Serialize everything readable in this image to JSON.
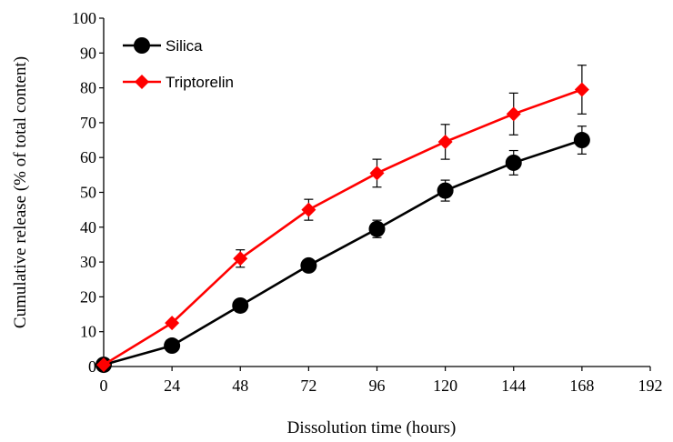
{
  "chart_data": {
    "type": "line",
    "title": "",
    "xlabel": "Dissolution time (hours)",
    "ylabel": "Cumulative release (% of total content)",
    "xlim": [
      0,
      192
    ],
    "ylim": [
      0,
      100
    ],
    "xticks": [
      "0",
      "24",
      "48",
      "72",
      "96",
      "120",
      "144",
      "168",
      "192"
    ],
    "yticks": [
      "0",
      "10",
      "20",
      "30",
      "40",
      "50",
      "60",
      "70",
      "80",
      "90",
      "100"
    ],
    "grid": false,
    "legend_position": "top-left",
    "x": [
      0,
      24,
      48,
      72,
      96,
      120,
      144,
      168
    ],
    "series": [
      {
        "name": "Silica",
        "color": "#000000",
        "marker": "circle",
        "values": [
          0.5,
          6,
          17.5,
          29,
          39.5,
          50.5,
          58.5,
          65
        ],
        "errors": [
          0,
          0,
          0,
          0,
          2.5,
          3,
          3.5,
          4
        ]
      },
      {
        "name": "Triptorelin",
        "color": "#ff0000",
        "marker": "diamond",
        "values": [
          0.5,
          12.5,
          31,
          45,
          55.5,
          64.5,
          72.5,
          79.5
        ],
        "errors": [
          0,
          0,
          2.5,
          3,
          4,
          5,
          6,
          7
        ]
      }
    ]
  }
}
